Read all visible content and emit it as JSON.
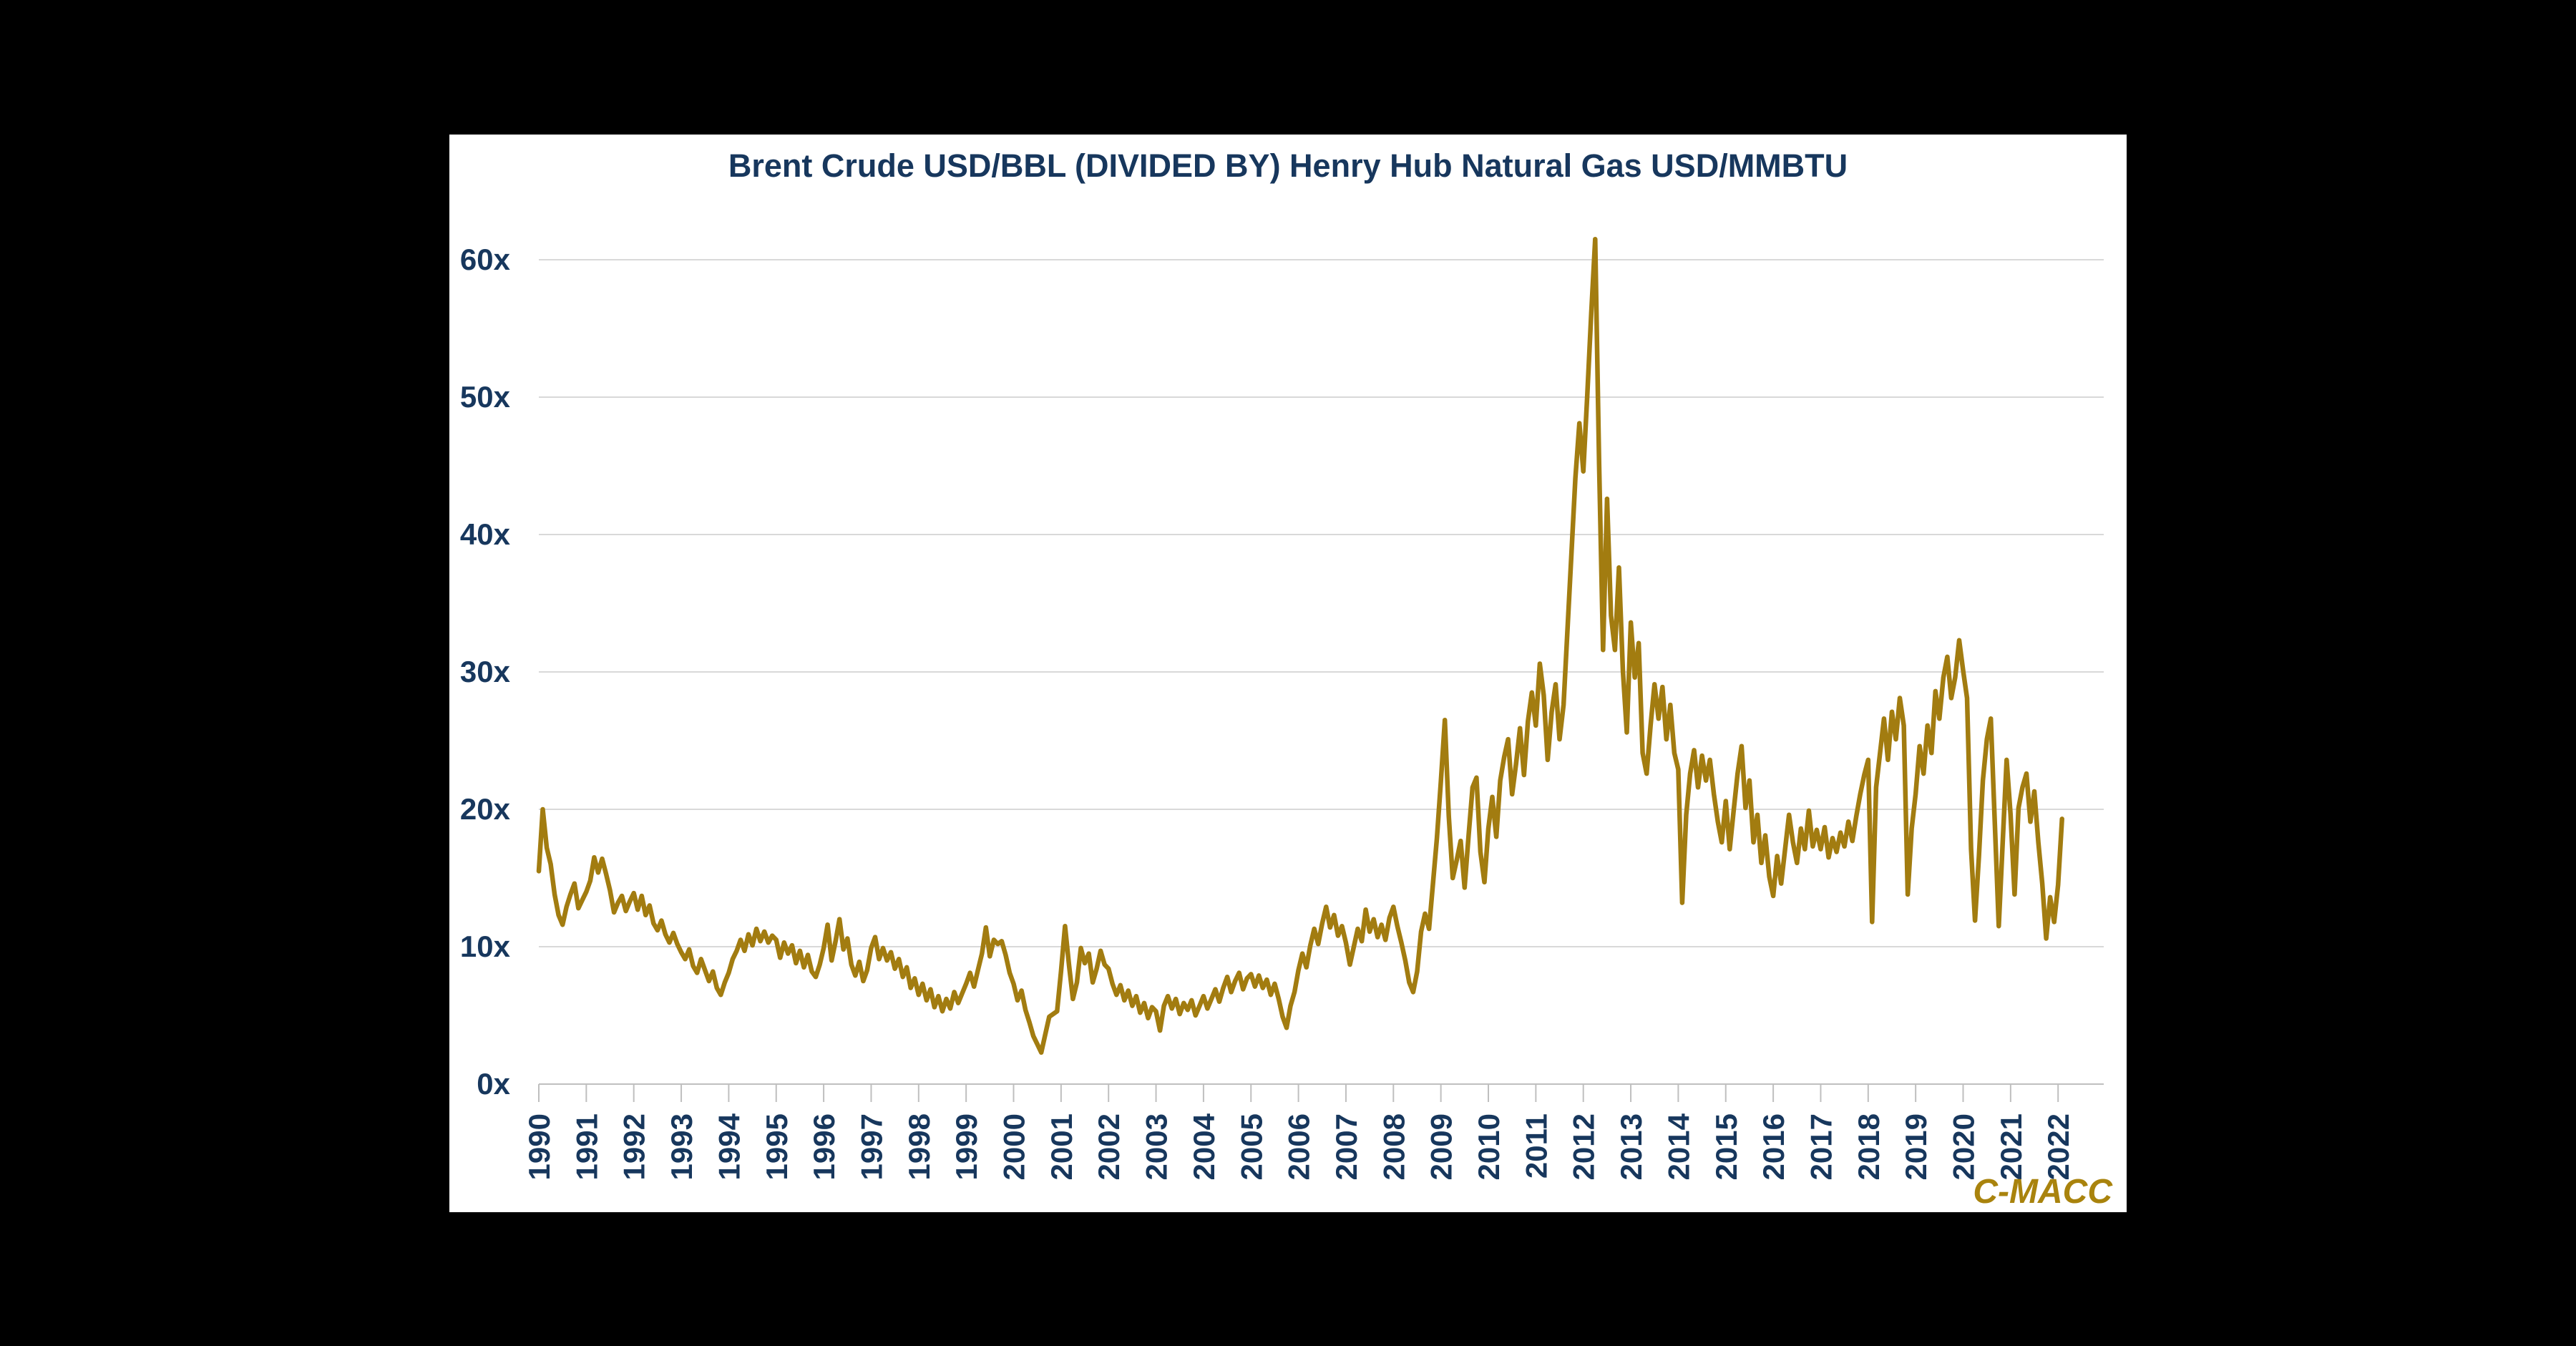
{
  "title": "Brent Crude USD/BBL (DIVIDED BY) Henry Hub Natural Gas USD/MMBTU",
  "logo_text": "C-MACC",
  "colors": {
    "page_background": "#000000",
    "panel_background": "#ffffff",
    "title_text": "#17375D",
    "tick_label_text": "#17375D",
    "line": "#A27C10",
    "gridline": "#D9D9D9",
    "axis": "#BFBFBF",
    "logo_text_color": "#A9830D"
  },
  "chart_data": {
    "type": "line",
    "title": "Brent Crude USD/BBL (DIVIDED BY) Henry Hub Natural Gas USD/MMBTU",
    "xlabel": "",
    "ylabel": "",
    "legend": "none",
    "grid": "horizontal",
    "ylim": [
      0,
      65
    ],
    "xlim": [
      1990,
      2022.25
    ],
    "yticks": [
      {
        "value": 0,
        "label": "0x"
      },
      {
        "value": 10,
        "label": "10x"
      },
      {
        "value": 20,
        "label": "20x"
      },
      {
        "value": 30,
        "label": "30x"
      },
      {
        "value": 40,
        "label": "40x"
      },
      {
        "value": 50,
        "label": "50x"
      },
      {
        "value": 60,
        "label": "60x"
      }
    ],
    "categories": [
      "1990",
      "1991",
      "1992",
      "1993",
      "1994",
      "1995",
      "1996",
      "1997",
      "1998",
      "1999",
      "2000",
      "2001",
      "2002",
      "2003",
      "2004",
      "2005",
      "2006",
      "2007",
      "2008",
      "2009",
      "2010",
      "2011",
      "2012",
      "2013",
      "2014",
      "2015",
      "2016",
      "2017",
      "2018",
      "2019",
      "2020",
      "2021",
      "2022"
    ],
    "series": [
      {
        "name": "Brent Crude / Henry Hub ratio",
        "start_year": 1990,
        "points_per_year": 12,
        "values": [
          15.5,
          20.0,
          17.2,
          16.0,
          13.8,
          12.3,
          11.6,
          12.9,
          13.8,
          14.6,
          12.8,
          13.4,
          14.0,
          14.8,
          16.5,
          15.4,
          16.4,
          15.3,
          14.1,
          12.5,
          13.2,
          13.7,
          12.6,
          13.3,
          13.9,
          12.7,
          13.7,
          12.3,
          13.0,
          11.7,
          11.2,
          11.9,
          10.9,
          10.3,
          11.0,
          10.2,
          9.6,
          9.1,
          9.8,
          8.6,
          8.1,
          9.1,
          8.3,
          7.5,
          8.2,
          7.0,
          6.5,
          7.4,
          8.1,
          9.1,
          9.7,
          10.5,
          9.7,
          10.9,
          10.1,
          11.3,
          10.4,
          11.1,
          10.3,
          10.8,
          10.5,
          9.2,
          10.3,
          9.5,
          10.1,
          8.8,
          9.7,
          8.5,
          9.4,
          8.2,
          7.8,
          8.7,
          9.9,
          11.6,
          9.0,
          10.4,
          12.0,
          9.8,
          10.6,
          8.7,
          7.9,
          8.9,
          7.5,
          8.3,
          9.9,
          10.7,
          9.1,
          9.9,
          9.0,
          9.6,
          8.4,
          9.1,
          7.8,
          8.5,
          7.0,
          7.7,
          6.5,
          7.3,
          6.1,
          6.9,
          5.6,
          6.4,
          5.3,
          6.2,
          5.5,
          6.7,
          5.9,
          6.6,
          7.3,
          8.1,
          7.1,
          8.3,
          9.5,
          11.4,
          9.3,
          10.5,
          10.2,
          10.4,
          9.4,
          8.1,
          7.3,
          6.1,
          6.8,
          5.4,
          4.5,
          3.5,
          2.9,
          2.3,
          3.6,
          4.9,
          5.1,
          5.3,
          8.2,
          11.5,
          8.7,
          6.2,
          7.4,
          9.9,
          8.8,
          9.5,
          7.4,
          8.4,
          9.7,
          8.7,
          8.4,
          7.3,
          6.5,
          7.2,
          6.1,
          6.8,
          5.7,
          6.4,
          5.2,
          5.9,
          4.8,
          5.6,
          5.3,
          3.9,
          5.7,
          6.4,
          5.5,
          6.2,
          5.1,
          5.9,
          5.4,
          6.1,
          5.0,
          5.7,
          6.4,
          5.5,
          6.2,
          6.9,
          6.0,
          7.0,
          7.8,
          6.7,
          7.5,
          8.1,
          6.9,
          7.7,
          8.0,
          7.1,
          7.9,
          7.0,
          7.6,
          6.5,
          7.3,
          6.2,
          4.9,
          4.1,
          5.7,
          6.7,
          8.3,
          9.5,
          8.5,
          10.1,
          11.3,
          10.2,
          11.7,
          12.9,
          11.4,
          12.3,
          10.8,
          11.5,
          10.3,
          8.7,
          10.0,
          11.3,
          10.4,
          12.7,
          11.1,
          12.0,
          10.7,
          11.6,
          10.5,
          12.1,
          12.9,
          11.5,
          10.3,
          9.0,
          7.4,
          6.7,
          8.2,
          11.1,
          12.4,
          11.3,
          14.6,
          17.9,
          22.0,
          26.5,
          19.5,
          15.0,
          16.3,
          17.7,
          14.3,
          18.1,
          21.6,
          22.3,
          16.9,
          14.7,
          18.6,
          20.9,
          18.0,
          22.1,
          23.8,
          25.1,
          21.1,
          23.3,
          25.9,
          22.5,
          26.4,
          28.5,
          26.1,
          30.6,
          28.3,
          23.6,
          27.1,
          29.1,
          25.1,
          27.6,
          33.1,
          38.6,
          44.1,
          48.1,
          44.6,
          50.1,
          56.1,
          61.5,
          45.1,
          31.6,
          42.6,
          34.1,
          31.6,
          37.6,
          30.1,
          25.6,
          33.6,
          29.6,
          32.1,
          24.1,
          22.6,
          26.1,
          29.1,
          26.6,
          28.9,
          25.1,
          27.6,
          24.1,
          22.9,
          13.2,
          19.6,
          22.6,
          24.3,
          21.6,
          23.9,
          22.1,
          23.6,
          21.1,
          19.1,
          17.6,
          20.6,
          17.1,
          19.9,
          22.6,
          24.6,
          20.1,
          22.1,
          17.6,
          19.6,
          16.1,
          18.1,
          15.1,
          13.7,
          16.6,
          14.6,
          17.1,
          19.6,
          17.6,
          16.1,
          18.6,
          17.1,
          19.9,
          17.3,
          18.5,
          17.1,
          18.7,
          16.5,
          17.9,
          16.9,
          18.3,
          17.3,
          19.1,
          17.7,
          19.5,
          21.1,
          22.5,
          23.6,
          11.8,
          21.6,
          24.1,
          26.6,
          23.6,
          27.1,
          25.1,
          28.1,
          26.1,
          13.8,
          18.6,
          21.1,
          24.6,
          22.6,
          26.1,
          24.1,
          28.6,
          26.6,
          29.6,
          31.1,
          28.1,
          29.6,
          32.3,
          30.1,
          28.1,
          17.1,
          11.9,
          16.6,
          22.1,
          25.1,
          26.6,
          19.1,
          11.5,
          17.6,
          23.6,
          19.6,
          13.8,
          20.1,
          21.6,
          22.6,
          19.1,
          21.3,
          17.6,
          14.6,
          10.6,
          13.6,
          11.8,
          14.5,
          19.3
        ]
      }
    ]
  }
}
